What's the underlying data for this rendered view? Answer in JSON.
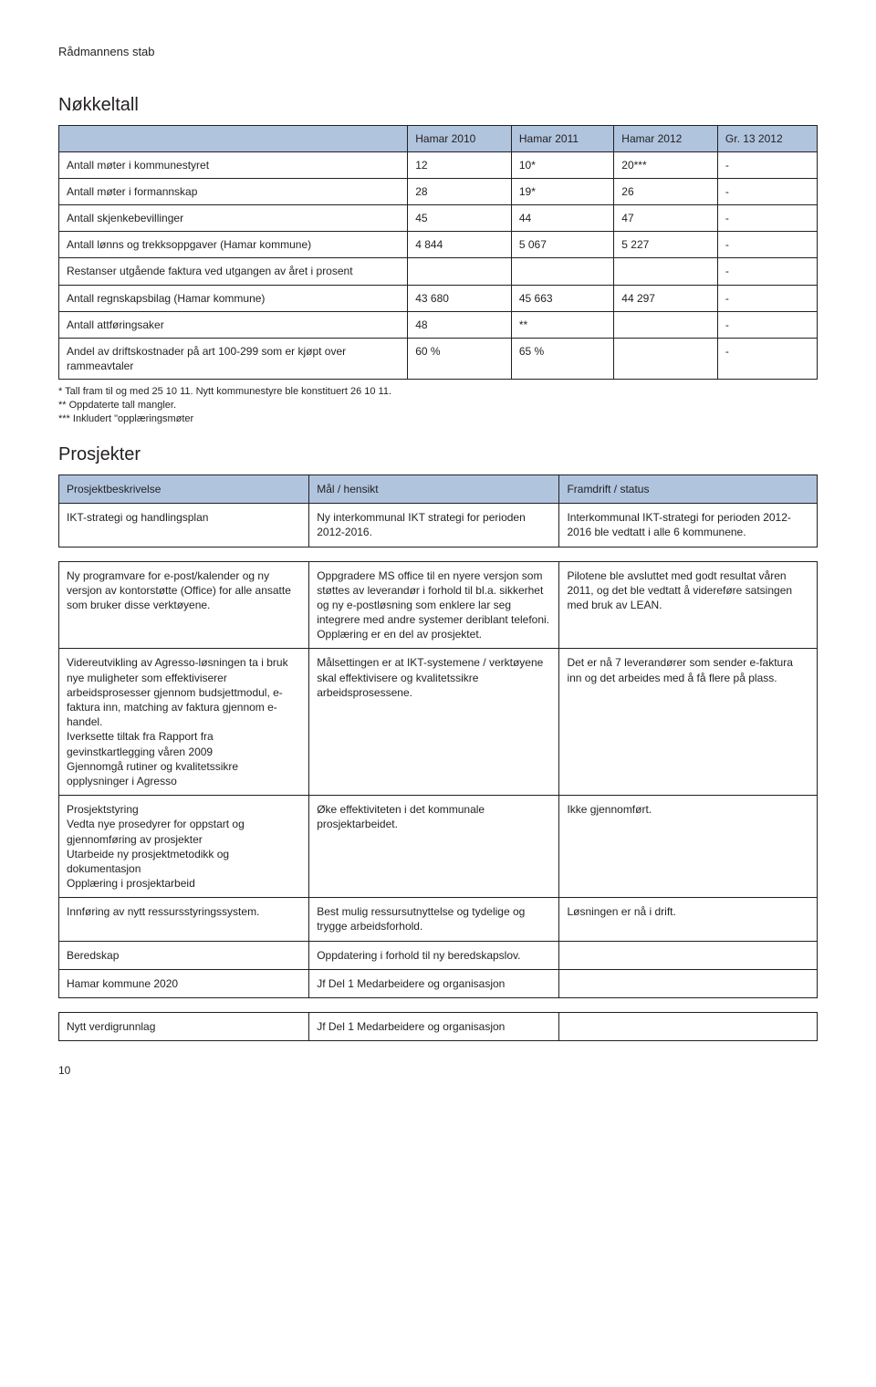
{
  "header": {
    "text": "Rådmannens stab"
  },
  "colors": {
    "table_header_bg": "#b0c4de",
    "table_border": "#231f20",
    "page_bg": "#ffffff",
    "text": "#231f20"
  },
  "nokkeltall": {
    "title": "Nøkkeltall",
    "columns": [
      "",
      "Hamar 2010",
      "Hamar 2011",
      "Hamar 2012",
      "Gr. 13 2012"
    ],
    "rows": [
      [
        "Antall møter i kommunestyret",
        "12",
        "10*",
        "20***",
        "-"
      ],
      [
        "Antall møter i formannskap",
        "28",
        "19*",
        "26",
        "-"
      ],
      [
        "Antall skjenkebevillinger",
        "45",
        "44",
        "47",
        "-"
      ],
      [
        "Antall lønns og trekksoppgaver (Hamar kommune)",
        "4 844",
        "5 067",
        "5 227",
        "-"
      ],
      [
        "Restanser utgående faktura ved utgangen av året i prosent",
        "",
        "",
        "",
        "-"
      ],
      [
        "Antall regnskapsbilag (Hamar kommune)",
        "43 680",
        "45 663",
        "44 297",
        "-"
      ],
      [
        "Antall attføringsaker",
        "48",
        "**",
        "",
        "-"
      ],
      [
        "Andel av driftskostnader på art 100-299 som er kjøpt over rammeavtaler",
        "60 %",
        "65 %",
        "",
        "-"
      ]
    ],
    "footnotes": [
      "*  Tall fram til og med 25 10 11.  Nytt kommunestyre ble konstituert 26 10 11.",
      "** Oppdaterte tall mangler.",
      "*** Inkludert \"opplæringsmøter"
    ]
  },
  "prosjekter": {
    "title": "Prosjekter",
    "columns": [
      "Prosjektbeskrivelse",
      "Mål / hensikt",
      "Framdrift / status"
    ],
    "groups": [
      {
        "rows": [
          [
            "IKT-strategi og handlingsplan",
            "Ny interkommunal IKT strategi for perioden 2012-2016.",
            "Interkommunal IKT-strategi for perioden 2012-2016 ble vedtatt i alle 6 kommunene."
          ]
        ]
      },
      {
        "rows": [
          [
            "Ny programvare for e-post/kalender og ny versjon av kontorstøtte (Office) for alle ansatte som bruker disse verktøyene.",
            "Oppgradere MS office til en nyere versjon som støttes av leverandør i forhold til bl.a. sikkerhet og ny e-postløsning som enklere lar seg integrere med andre systemer deriblant telefoni.\nOpplæring er en del av prosjektet.",
            "Pilotene ble avsluttet med godt resultat våren 2011, og det ble vedtatt å videreføre satsingen med bruk av LEAN."
          ],
          [
            "Videreutvikling av Agresso-løsningen ta i bruk nye muligheter som effektiviserer arbeidsprosesser gjennom budsjettmodul, e-faktura inn, matching av faktura gjennom e-handel.\nIverksette tiltak fra Rapport fra gevinstkartlegging våren 2009\nGjennomgå rutiner og kvalitetssikre opplysninger i Agresso",
            "Målsettingen er at IKT-systemene / verktøyene skal effektivisere og kvalitetssikre arbeidsprosessene.",
            "Det er nå 7 leverandører som sender e-faktura inn og det arbeides med å få flere på plass."
          ],
          [
            "Prosjektstyring\nVedta nye prosedyrer for oppstart og gjennomføring av prosjekter\nUtarbeide ny prosjektmetodikk og dokumentasjon\nOpplæring i prosjektarbeid",
            "Øke effektiviteten i det kommunale prosjektarbeidet.",
            "Ikke gjennomført."
          ],
          [
            "Innføring av nytt ressursstyringssystem.",
            "Best mulig ressursutnyttelse og tydelige og trygge arbeidsforhold.",
            "Løsningen er nå i drift."
          ],
          [
            "Beredskap",
            "Oppdatering i forhold til ny beredskapslov.",
            ""
          ],
          [
            "Hamar kommune 2020",
            "Jf Del 1 Medarbeidere og organisasjon",
            ""
          ]
        ]
      },
      {
        "rows": [
          [
            "Nytt verdigrunnlag",
            "Jf Del 1 Medarbeidere og organisasjon",
            ""
          ]
        ]
      }
    ]
  },
  "page_number": "10"
}
